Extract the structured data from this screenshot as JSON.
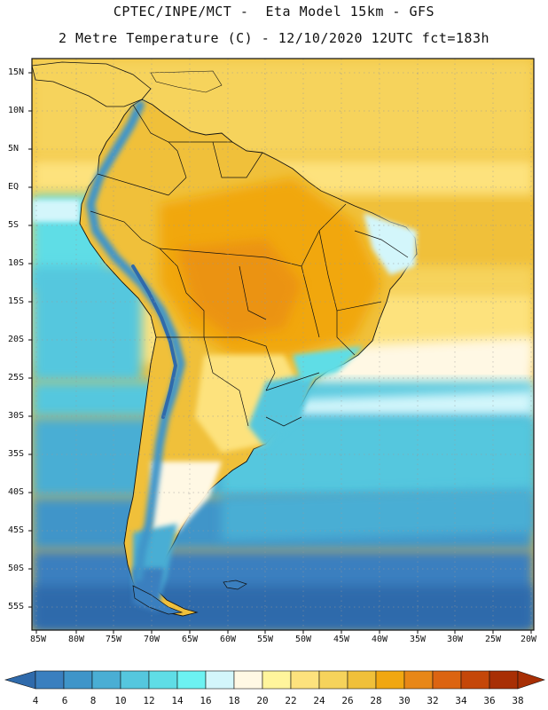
{
  "title_line1": "CPTEC/INPE/MCT -  Eta Model 15km - GFS",
  "title_line2": "2 Metre Temperature (C) - 12/10/2020 12UTC fct=183h",
  "lat_labels": [
    "15N",
    "10N",
    "5N",
    "EQ",
    "5S",
    "10S",
    "15S",
    "20S",
    "25S",
    "30S",
    "35S",
    "40S",
    "45S",
    "50S",
    "55S"
  ],
  "lon_labels": [
    "85W",
    "80W",
    "75W",
    "70W",
    "65W",
    "60W",
    "55W",
    "50W",
    "45W",
    "40W",
    "35W",
    "30W",
    "25W",
    "20W"
  ],
  "colorbar": {
    "labels": [
      "4",
      "6",
      "8",
      "10",
      "12",
      "14",
      "16",
      "18",
      "20",
      "22",
      "24",
      "26",
      "28",
      "30",
      "32",
      "34",
      "36",
      "38"
    ],
    "colors": [
      "#2f6aab",
      "#3a7fbf",
      "#3f95c9",
      "#4aaed4",
      "#55c7de",
      "#5fdde6",
      "#6cf2f2",
      "#d3f6fb",
      "#fff8e4",
      "#fff59c",
      "#fde27d",
      "#f6d35b",
      "#f0c03a",
      "#f1a711",
      "#e88717",
      "#dc6411",
      "#c54709",
      "#a82f05"
    ],
    "left_arrow_color": "#2f6aab",
    "right_arrow_color": "#a82f05"
  }
}
